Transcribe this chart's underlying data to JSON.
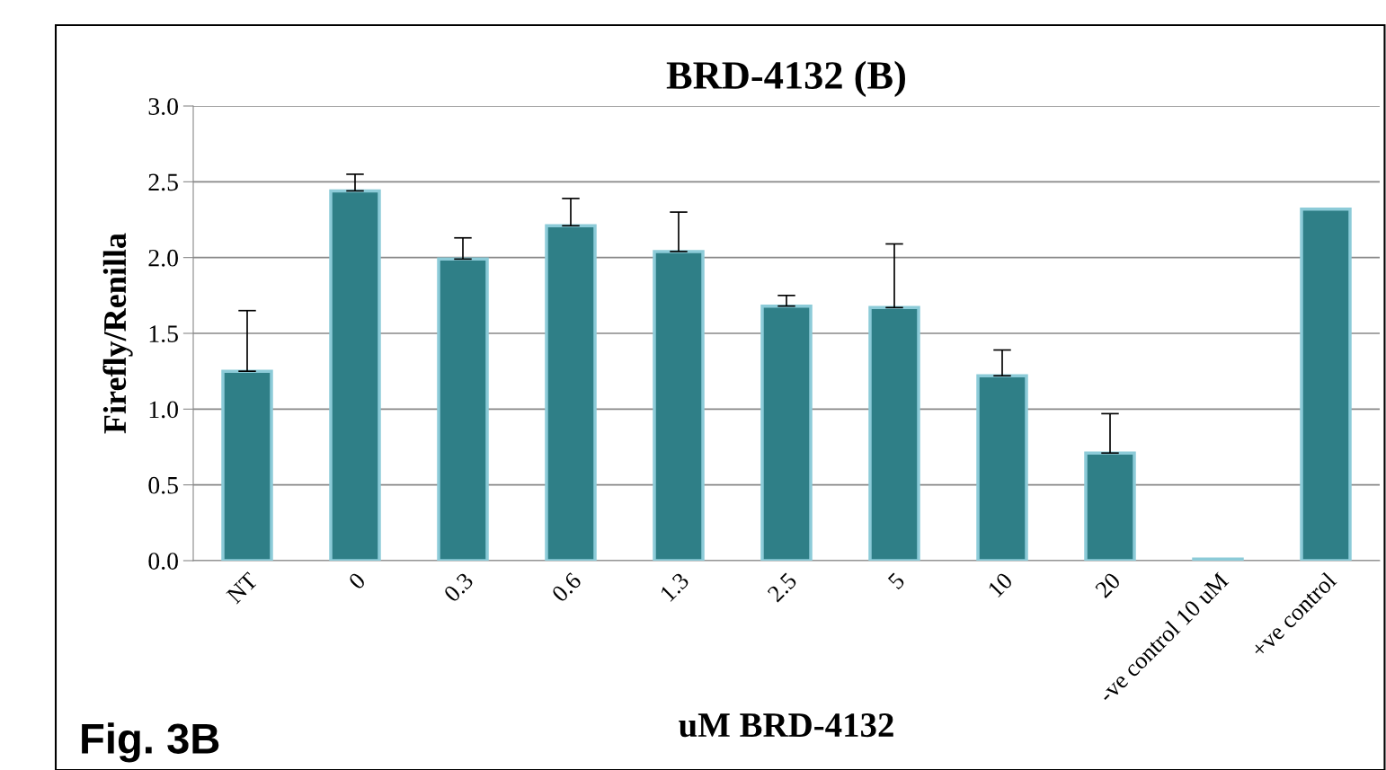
{
  "chart_data": {
    "type": "bar",
    "title": "BRD-4132 (B)",
    "xlabel": "uM BRD-4132",
    "ylabel": "Firefly/Renilla",
    "categories": [
      "NT",
      "0",
      "0.3",
      "0.6",
      "1.3",
      "2.5",
      "5",
      "10",
      "20",
      "-ve control 10 uM",
      "+ve control"
    ],
    "values": [
      1.25,
      2.44,
      1.99,
      2.21,
      2.04,
      1.68,
      1.67,
      1.22,
      0.71,
      0.01,
      2.32
    ],
    "errors": [
      0.4,
      0.11,
      0.14,
      0.18,
      0.26,
      0.07,
      0.42,
      0.17,
      0.26,
      null,
      null
    ],
    "color": "#2f7f87",
    "ylim": [
      0,
      3
    ],
    "yticks": [
      {
        "value": 0,
        "label": "0.0"
      },
      {
        "value": 0.5,
        "label": "0.5"
      },
      {
        "value": 1,
        "label": "1.0"
      },
      {
        "value": 1.5,
        "label": "1.5"
      },
      {
        "value": 2,
        "label": "2.0"
      },
      {
        "value": 2.5,
        "label": "2.5"
      },
      {
        "value": 3,
        "label": "3.0"
      }
    ],
    "grid": "y",
    "annotations": [
      "Fig. 3B"
    ]
  }
}
